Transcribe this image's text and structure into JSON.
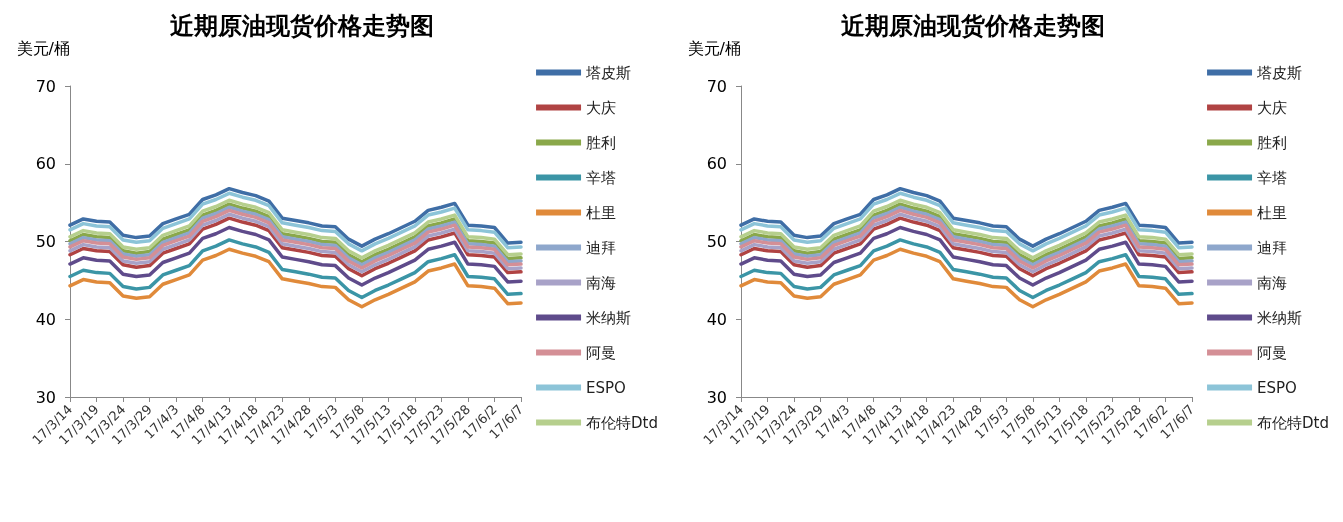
{
  "chart_data": [
    {
      "type": "line",
      "title": "近期原油现货价格走势图",
      "ylabel": "美元/桶",
      "categories": [
        "17/3/14",
        null,
        "17/3/19",
        null,
        "17/3/24",
        null,
        "17/3/29",
        null,
        "17/4/3",
        null,
        "17/4/8",
        null,
        "17/4/13",
        null,
        "17/4/18",
        null,
        "17/4/23",
        null,
        "17/4/28",
        null,
        "17/5/3",
        null,
        "17/5/8",
        null,
        "17/5/13",
        null,
        "17/5/18",
        null,
        "17/5/23",
        null,
        "17/5/28",
        null,
        "17/6/2",
        null,
        "17/6/7"
      ],
      "ylim": [
        30,
        70
      ],
      "yticks": [
        30,
        40,
        50,
        60,
        70
      ],
      "grid": false,
      "legend": "right",
      "marker": "none",
      "line_style": "solid",
      "series": [
        {
          "name": "塔皮斯",
          "color": "#3f6ea6",
          "values": [
            52.1,
            52.9,
            52.6,
            52.5,
            50.8,
            50.5,
            50.7,
            52.3,
            52.9,
            53.5,
            55.4,
            56.0,
            56.8,
            56.3,
            55.9,
            55.2,
            53.0,
            52.7,
            52.4,
            52.0,
            51.9,
            50.3,
            49.4,
            50.3,
            51.0,
            51.8,
            52.6,
            54.0,
            54.4,
            54.9,
            52.1,
            52.0,
            51.8,
            49.8,
            49.9
          ]
        },
        {
          "name": "大庆",
          "color": "#b04343",
          "values": [
            48.3,
            49.1,
            48.8,
            48.7,
            47.0,
            46.7,
            46.9,
            48.5,
            49.1,
            49.7,
            51.6,
            52.2,
            53.0,
            52.5,
            52.1,
            51.4,
            49.2,
            48.9,
            48.6,
            48.2,
            48.1,
            46.5,
            45.6,
            46.5,
            47.2,
            48.0,
            48.8,
            50.2,
            50.6,
            51.1,
            48.3,
            48.2,
            48.0,
            46.0,
            46.1
          ]
        },
        {
          "name": "胜利",
          "color": "#8aa84a",
          "values": [
            50.1,
            50.9,
            50.6,
            50.5,
            48.8,
            48.5,
            48.7,
            50.3,
            50.9,
            51.5,
            53.4,
            54.0,
            54.8,
            54.3,
            53.9,
            53.2,
            51.0,
            50.7,
            50.4,
            50.0,
            49.9,
            48.3,
            47.4,
            48.3,
            49.0,
            49.8,
            50.6,
            52.0,
            52.4,
            52.9,
            50.1,
            50.0,
            49.8,
            47.8,
            47.9
          ]
        },
        {
          "name": "辛塔",
          "color": "#3b95a6",
          "values": [
            45.5,
            46.3,
            46.0,
            45.9,
            44.2,
            43.9,
            44.1,
            45.7,
            46.3,
            46.9,
            48.8,
            49.4,
            50.2,
            49.7,
            49.3,
            48.6,
            46.4,
            46.1,
            45.8,
            45.4,
            45.3,
            43.7,
            42.8,
            43.7,
            44.4,
            45.2,
            46.0,
            47.4,
            47.8,
            48.3,
            45.5,
            45.4,
            45.2,
            43.2,
            43.3
          ]
        },
        {
          "name": "杜里",
          "color": "#e08a3a",
          "values": [
            44.3,
            45.1,
            44.8,
            44.7,
            43.0,
            42.7,
            42.9,
            44.5,
            45.1,
            45.7,
            47.6,
            48.2,
            49.0,
            48.5,
            48.1,
            47.4,
            45.2,
            44.9,
            44.6,
            44.2,
            44.1,
            42.5,
            41.6,
            42.5,
            43.2,
            44.0,
            44.8,
            46.2,
            46.6,
            47.1,
            44.3,
            44.2,
            44.0,
            42.0,
            42.1
          ]
        },
        {
          "name": "迪拜",
          "color": "#8ea7cc",
          "values": [
            49.7,
            50.5,
            50.2,
            50.1,
            48.4,
            48.1,
            48.3,
            49.9,
            50.5,
            51.1,
            53.0,
            53.6,
            54.4,
            53.9,
            53.5,
            52.8,
            50.6,
            50.3,
            50.0,
            49.6,
            49.5,
            47.9,
            47.0,
            47.9,
            48.6,
            49.4,
            50.2,
            51.6,
            52.0,
            52.5,
            49.7,
            49.6,
            49.4,
            47.4,
            47.5
          ]
        },
        {
          "name": "南海",
          "color": "#a8a2c8",
          "values": [
            48.8,
            49.6,
            49.3,
            49.2,
            47.5,
            47.2,
            47.4,
            49.0,
            49.6,
            50.2,
            52.1,
            52.7,
            53.5,
            53.0,
            52.6,
            51.9,
            49.7,
            49.4,
            49.1,
            48.7,
            48.6,
            47.0,
            46.1,
            47.0,
            47.7,
            48.5,
            49.3,
            50.7,
            51.1,
            51.6,
            48.8,
            48.7,
            48.5,
            46.5,
            46.6
          ]
        },
        {
          "name": "米纳斯",
          "color": "#5f4b8b",
          "values": [
            47.1,
            47.9,
            47.6,
            47.5,
            45.8,
            45.5,
            45.7,
            47.3,
            47.9,
            48.5,
            50.4,
            51.0,
            51.8,
            51.3,
            50.9,
            50.2,
            48.0,
            47.7,
            47.4,
            47.0,
            46.9,
            45.3,
            44.4,
            45.3,
            46.0,
            46.8,
            47.6,
            49.0,
            49.4,
            49.9,
            47.1,
            47.0,
            46.8,
            44.8,
            44.9
          ]
        },
        {
          "name": "阿曼",
          "color": "#d48f96",
          "values": [
            49.3,
            50.1,
            49.8,
            49.7,
            48.0,
            47.7,
            47.9,
            49.5,
            50.1,
            50.7,
            52.6,
            53.2,
            54.0,
            53.5,
            53.1,
            52.4,
            50.2,
            49.9,
            49.6,
            49.2,
            49.1,
            47.5,
            46.6,
            47.5,
            48.2,
            49.0,
            49.8,
            51.2,
            51.6,
            52.1,
            49.3,
            49.2,
            49.0,
            47.0,
            47.1
          ]
        },
        {
          "name": "ESPO",
          "color": "#8cc4d8",
          "values": [
            51.5,
            52.3,
            52.0,
            51.9,
            50.2,
            49.9,
            50.1,
            51.7,
            52.3,
            52.9,
            54.8,
            55.4,
            56.2,
            55.7,
            55.3,
            54.6,
            52.4,
            52.1,
            51.8,
            51.4,
            51.3,
            49.7,
            48.8,
            49.7,
            50.4,
            51.2,
            52.0,
            53.4,
            53.8,
            54.3,
            51.5,
            51.4,
            51.2,
            49.2,
            49.3
          ]
        },
        {
          "name": "布伦特Dtd",
          "color": "#b6cf8d",
          "values": [
            50.6,
            51.4,
            51.1,
            51.0,
            49.3,
            49.0,
            49.2,
            50.8,
            51.4,
            52.0,
            53.9,
            54.5,
            55.3,
            54.8,
            54.4,
            53.7,
            51.5,
            51.2,
            50.9,
            50.5,
            50.4,
            48.8,
            47.9,
            48.8,
            49.5,
            50.3,
            51.1,
            52.5,
            52.9,
            53.4,
            50.6,
            50.5,
            50.3,
            48.3,
            48.4
          ]
        }
      ]
    },
    {
      "type": "line",
      "title": "近期原油现货价格走势图",
      "ylabel": "美元/桶",
      "categories": [
        "17/3/14",
        null,
        "17/3/19",
        null,
        "17/3/24",
        null,
        "17/3/29",
        null,
        "17/4/3",
        null,
        "17/4/8",
        null,
        "17/4/13",
        null,
        "17/4/18",
        null,
        "17/4/23",
        null,
        "17/4/28",
        null,
        "17/5/3",
        null,
        "17/5/8",
        null,
        "17/5/13",
        null,
        "17/5/18",
        null,
        "17/5/23",
        null,
        "17/5/28",
        null,
        "17/6/2",
        null,
        "17/6/7"
      ],
      "ylim": [
        30,
        70
      ],
      "yticks": [
        30,
        40,
        50,
        60,
        70
      ],
      "grid": false,
      "legend": "right",
      "marker": "none",
      "line_style": "solid",
      "series": [
        {
          "name": "塔皮斯",
          "color": "#3f6ea6",
          "values": [
            52.1,
            52.9,
            52.6,
            52.5,
            50.8,
            50.5,
            50.7,
            52.3,
            52.9,
            53.5,
            55.4,
            56.0,
            56.8,
            56.3,
            55.9,
            55.2,
            53.0,
            52.7,
            52.4,
            52.0,
            51.9,
            50.3,
            49.4,
            50.3,
            51.0,
            51.8,
            52.6,
            54.0,
            54.4,
            54.9,
            52.1,
            52.0,
            51.8,
            49.8,
            49.9
          ]
        },
        {
          "name": "大庆",
          "color": "#b04343",
          "values": [
            48.3,
            49.1,
            48.8,
            48.7,
            47.0,
            46.7,
            46.9,
            48.5,
            49.1,
            49.7,
            51.6,
            52.2,
            53.0,
            52.5,
            52.1,
            51.4,
            49.2,
            48.9,
            48.6,
            48.2,
            48.1,
            46.5,
            45.6,
            46.5,
            47.2,
            48.0,
            48.8,
            50.2,
            50.6,
            51.1,
            48.3,
            48.2,
            48.0,
            46.0,
            46.1
          ]
        },
        {
          "name": "胜利",
          "color": "#8aa84a",
          "values": [
            50.1,
            50.9,
            50.6,
            50.5,
            48.8,
            48.5,
            48.7,
            50.3,
            50.9,
            51.5,
            53.4,
            54.0,
            54.8,
            54.3,
            53.9,
            53.2,
            51.0,
            50.7,
            50.4,
            50.0,
            49.9,
            48.3,
            47.4,
            48.3,
            49.0,
            49.8,
            50.6,
            52.0,
            52.4,
            52.9,
            50.1,
            50.0,
            49.8,
            47.8,
            47.9
          ]
        },
        {
          "name": "辛塔",
          "color": "#3b95a6",
          "values": [
            45.5,
            46.3,
            46.0,
            45.9,
            44.2,
            43.9,
            44.1,
            45.7,
            46.3,
            46.9,
            48.8,
            49.4,
            50.2,
            49.7,
            49.3,
            48.6,
            46.4,
            46.1,
            45.8,
            45.4,
            45.3,
            43.7,
            42.8,
            43.7,
            44.4,
            45.2,
            46.0,
            47.4,
            47.8,
            48.3,
            45.5,
            45.4,
            45.2,
            43.2,
            43.3
          ]
        },
        {
          "name": "杜里",
          "color": "#e08a3a",
          "values": [
            44.3,
            45.1,
            44.8,
            44.7,
            43.0,
            42.7,
            42.9,
            44.5,
            45.1,
            45.7,
            47.6,
            48.2,
            49.0,
            48.5,
            48.1,
            47.4,
            45.2,
            44.9,
            44.6,
            44.2,
            44.1,
            42.5,
            41.6,
            42.5,
            43.2,
            44.0,
            44.8,
            46.2,
            46.6,
            47.1,
            44.3,
            44.2,
            44.0,
            42.0,
            42.1
          ]
        },
        {
          "name": "迪拜",
          "color": "#8ea7cc",
          "values": [
            49.7,
            50.5,
            50.2,
            50.1,
            48.4,
            48.1,
            48.3,
            49.9,
            50.5,
            51.1,
            53.0,
            53.6,
            54.4,
            53.9,
            53.5,
            52.8,
            50.6,
            50.3,
            50.0,
            49.6,
            49.5,
            47.9,
            47.0,
            47.9,
            48.6,
            49.4,
            50.2,
            51.6,
            52.0,
            52.5,
            49.7,
            49.6,
            49.4,
            47.4,
            47.5
          ]
        },
        {
          "name": "南海",
          "color": "#a8a2c8",
          "values": [
            48.8,
            49.6,
            49.3,
            49.2,
            47.5,
            47.2,
            47.4,
            49.0,
            49.6,
            50.2,
            52.1,
            52.7,
            53.5,
            53.0,
            52.6,
            51.9,
            49.7,
            49.4,
            49.1,
            48.7,
            48.6,
            47.0,
            46.1,
            47.0,
            47.7,
            48.5,
            49.3,
            50.7,
            51.1,
            51.6,
            48.8,
            48.7,
            48.5,
            46.5,
            46.6
          ]
        },
        {
          "name": "米纳斯",
          "color": "#5f4b8b",
          "values": [
            47.1,
            47.9,
            47.6,
            47.5,
            45.8,
            45.5,
            45.7,
            47.3,
            47.9,
            48.5,
            50.4,
            51.0,
            51.8,
            51.3,
            50.9,
            50.2,
            48.0,
            47.7,
            47.4,
            47.0,
            46.9,
            45.3,
            44.4,
            45.3,
            46.0,
            46.8,
            47.6,
            49.0,
            49.4,
            49.9,
            47.1,
            47.0,
            46.8,
            44.8,
            44.9
          ]
        },
        {
          "name": "阿曼",
          "color": "#d48f96",
          "values": [
            49.3,
            50.1,
            49.8,
            49.7,
            48.0,
            47.7,
            47.9,
            49.5,
            50.1,
            50.7,
            52.6,
            53.2,
            54.0,
            53.5,
            53.1,
            52.4,
            50.2,
            49.9,
            49.6,
            49.2,
            49.1,
            47.5,
            46.6,
            47.5,
            48.2,
            49.0,
            49.8,
            51.2,
            51.6,
            52.1,
            49.3,
            49.2,
            49.0,
            47.0,
            47.1
          ]
        },
        {
          "name": "ESPO",
          "color": "#8cc4d8",
          "values": [
            51.5,
            52.3,
            52.0,
            51.9,
            50.2,
            49.9,
            50.1,
            51.7,
            52.3,
            52.9,
            54.8,
            55.4,
            56.2,
            55.7,
            55.3,
            54.6,
            52.4,
            52.1,
            51.8,
            51.4,
            51.3,
            49.7,
            48.8,
            49.7,
            50.4,
            51.2,
            52.0,
            53.4,
            53.8,
            54.3,
            51.5,
            51.4,
            51.2,
            49.2,
            49.3
          ]
        },
        {
          "name": "布伦特Dtd",
          "color": "#b6cf8d",
          "values": [
            50.6,
            51.4,
            51.1,
            51.0,
            49.3,
            49.0,
            49.2,
            50.8,
            51.4,
            52.0,
            53.9,
            54.5,
            55.3,
            54.8,
            54.4,
            53.7,
            51.5,
            51.2,
            50.9,
            50.5,
            50.4,
            48.8,
            47.9,
            48.8,
            49.5,
            50.3,
            51.1,
            52.5,
            52.9,
            53.4,
            50.6,
            50.5,
            50.3,
            48.3,
            48.4
          ]
        }
      ]
    }
  ]
}
